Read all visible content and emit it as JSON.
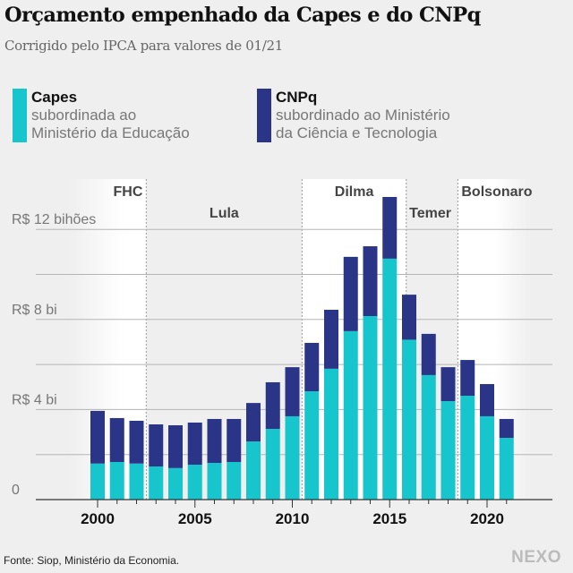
{
  "header": {
    "title": "Orçamento empenhado da Capes e do CNPq",
    "subtitle": "Corrigido pelo IPCA para valores de 01/21"
  },
  "legend": [
    {
      "name": "Capes",
      "desc_line1": "subordinada ao",
      "desc_line2": "Ministério da Educação",
      "color": "#17c6cc"
    },
    {
      "name": "CNPq",
      "desc_line1": "subordinado ao Ministério",
      "desc_line2": "da Ciência e Tecnologia",
      "color": "#2a3587"
    }
  ],
  "footer": {
    "source": "Fonte: Siop, Ministério da Economia.",
    "logo": "NEXO"
  },
  "chart_data": {
    "type": "bar",
    "stacked": true,
    "title": "Orçamento empenhado da Capes e do CNPq",
    "subtitle": "Corrigido pelo IPCA para valores de 01/21",
    "xlabel": "",
    "ylabel": "R$ bilhões",
    "ylim": [
      0,
      13.5
    ],
    "grid": true,
    "legend_position": "top-left",
    "categories": [
      2000,
      2001,
      2002,
      2003,
      2004,
      2005,
      2006,
      2007,
      2008,
      2009,
      2010,
      2011,
      2012,
      2013,
      2014,
      2015,
      2016,
      2017,
      2018,
      2019,
      2020,
      2021
    ],
    "series": [
      {
        "name": "Capes",
        "color": "#17c6cc",
        "values": [
          1.6,
          1.67,
          1.6,
          1.47,
          1.4,
          1.55,
          1.63,
          1.67,
          2.58,
          3.14,
          3.7,
          4.81,
          5.81,
          7.48,
          8.15,
          10.7,
          7.1,
          5.53,
          4.37,
          4.61,
          3.7,
          2.74
        ]
      },
      {
        "name": "CNPq",
        "color": "#2a3587",
        "values": [
          2.34,
          1.95,
          1.9,
          1.87,
          1.9,
          1.87,
          1.95,
          1.91,
          1.71,
          2.07,
          2.18,
          2.15,
          2.62,
          3.3,
          3.1,
          2.74,
          2.0,
          1.83,
          1.51,
          1.59,
          1.43,
          0.84
        ]
      }
    ],
    "totals": [
      3.94,
      3.62,
      3.5,
      3.34,
      3.3,
      3.42,
      3.58,
      3.58,
      4.29,
      5.21,
      5.88,
      6.96,
      8.43,
      10.78,
      11.25,
      13.44,
      9.1,
      7.36,
      5.88,
      6.2,
      5.13,
      3.58
    ],
    "y_ticks": [
      {
        "value": 0,
        "label": "0"
      },
      {
        "value": 2,
        "label": ""
      },
      {
        "value": 4,
        "label": "R$ 4 bi"
      },
      {
        "value": 6,
        "label": ""
      },
      {
        "value": 8,
        "label": "R$ 8 bi"
      },
      {
        "value": 10,
        "label": ""
      },
      {
        "value": 12,
        "label": "R$ 12 bihões"
      }
    ],
    "x_tick_labels": [
      {
        "value": 2000,
        "label": "2000"
      },
      {
        "value": 2005,
        "label": "2005"
      },
      {
        "value": 2010,
        "label": "2010"
      },
      {
        "value": 2015,
        "label": "2015"
      },
      {
        "value": 2020,
        "label": "2020"
      }
    ],
    "periods": [
      {
        "label": "FHC",
        "start": 1998.6,
        "end": 2002.5,
        "shade": "white",
        "label_align": "right",
        "label_row": 0
      },
      {
        "label": "Lula",
        "start": 2002.5,
        "end": 2010.5,
        "shade": "gray",
        "label_align": "center",
        "label_row": 1
      },
      {
        "label": "Dilma",
        "start": 2010.5,
        "end": 2015.85,
        "shade": "white",
        "label_align": "center",
        "label_row": 0
      },
      {
        "label": "Temer",
        "start": 2015.85,
        "end": 2018.5,
        "shade": "gray",
        "label_align": "center",
        "label_row": 1
      },
      {
        "label": "Bolsonaro",
        "start": 2018.5,
        "end": 2022.2,
        "shade": "white",
        "label_align": "center",
        "label_row": 0
      }
    ]
  }
}
